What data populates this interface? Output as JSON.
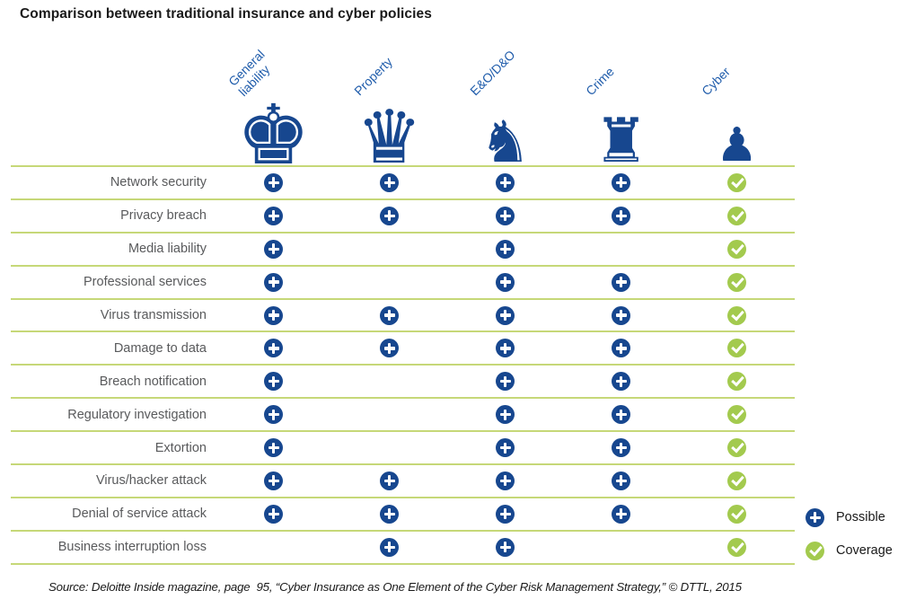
{
  "title": "Comparison between traditional insurance and cyber policies",
  "colors": {
    "navy": "#17478f",
    "header_blue": "#1f5cab",
    "check_green": "#a3ca4e",
    "line_green": "#c6d878",
    "row_label_gray": "#595a5c",
    "title_color": "#1a1a1a"
  },
  "columns": [
    {
      "id": "general-liability",
      "label": "General\nliability",
      "piece": "king-chess",
      "glyph": "♚"
    },
    {
      "id": "property",
      "label": "Property",
      "piece": "queen-chess",
      "glyph": "♛"
    },
    {
      "id": "eo-do",
      "label": "E&O/D&O",
      "piece": "knight-chess",
      "glyph": "♞"
    },
    {
      "id": "crime",
      "label": "Crime",
      "piece": "rook-chess",
      "glyph": "♜"
    },
    {
      "id": "cyber",
      "label": "Cyber",
      "piece": "pawn-chess",
      "glyph": "♟"
    }
  ],
  "rows": [
    {
      "label": "Network security",
      "cells": [
        "plus",
        "plus",
        "plus",
        "plus",
        "check"
      ]
    },
    {
      "label": "Privacy breach",
      "cells": [
        "plus",
        "plus",
        "plus",
        "plus",
        "check"
      ]
    },
    {
      "label": "Media liability",
      "cells": [
        "plus",
        "",
        "plus",
        "",
        "check"
      ]
    },
    {
      "label": "Professional services",
      "cells": [
        "plus",
        "",
        "plus",
        "plus",
        "check"
      ]
    },
    {
      "label": "Virus transmission",
      "cells": [
        "plus",
        "plus",
        "plus",
        "plus",
        "check"
      ]
    },
    {
      "label": "Damage to data",
      "cells": [
        "plus",
        "plus",
        "plus",
        "plus",
        "check"
      ]
    },
    {
      "label": "Breach notification",
      "cells": [
        "plus",
        "",
        "plus",
        "plus",
        "check"
      ]
    },
    {
      "label": "Regulatory investigation",
      "cells": [
        "plus",
        "",
        "plus",
        "plus",
        "check"
      ]
    },
    {
      "label": "Extortion",
      "cells": [
        "plus",
        "",
        "plus",
        "plus",
        "check"
      ]
    },
    {
      "label": "Virus/hacker attack",
      "cells": [
        "plus",
        "plus",
        "plus",
        "plus",
        "check"
      ]
    },
    {
      "label": "Denial of service attack",
      "cells": [
        "plus",
        "plus",
        "plus",
        "plus",
        "check"
      ]
    },
    {
      "label": "Business interruption loss",
      "cells": [
        "",
        "plus",
        "plus",
        "",
        "check"
      ]
    }
  ],
  "legend": [
    {
      "icon": "plus",
      "label": "Possible"
    },
    {
      "icon": "check",
      "label": "Coverage"
    }
  ],
  "source": "Source: Deloitte Inside magazine, page  95, “Cyber Insurance as One Element of the Cyber Risk Management Strategy,” © DTTL, 2015",
  "chart_data": {
    "type": "table",
    "title": "Comparison between traditional insurance and cyber policies",
    "columns": [
      "General liability",
      "Property",
      "E&O/D&O",
      "Crime",
      "Cyber"
    ],
    "column_icons": [
      "king chess piece",
      "queen chess piece",
      "knight chess piece",
      "rook chess piece",
      "pawn chess piece"
    ],
    "row_labels": [
      "Network security",
      "Privacy breach",
      "Media liability",
      "Professional services",
      "Virus transmission",
      "Damage to data",
      "Breach notification",
      "Regulatory investigation",
      "Extortion",
      "Virus/hacker attack",
      "Denial of service attack",
      "Business interruption loss"
    ],
    "values": [
      [
        "Possible",
        "Possible",
        "Possible",
        "Possible",
        "Coverage"
      ],
      [
        "Possible",
        "Possible",
        "Possible",
        "Possible",
        "Coverage"
      ],
      [
        "Possible",
        null,
        "Possible",
        null,
        "Coverage"
      ],
      [
        "Possible",
        null,
        "Possible",
        "Possible",
        "Coverage"
      ],
      [
        "Possible",
        "Possible",
        "Possible",
        "Possible",
        "Coverage"
      ],
      [
        "Possible",
        "Possible",
        "Possible",
        "Possible",
        "Coverage"
      ],
      [
        "Possible",
        null,
        "Possible",
        "Possible",
        "Coverage"
      ],
      [
        "Possible",
        null,
        "Possible",
        "Possible",
        "Coverage"
      ],
      [
        "Possible",
        null,
        "Possible",
        "Possible",
        "Coverage"
      ],
      [
        "Possible",
        "Possible",
        "Possible",
        "Possible",
        "Coverage"
      ],
      [
        "Possible",
        "Possible",
        "Possible",
        "Possible",
        "Coverage"
      ],
      [
        null,
        "Possible",
        "Possible",
        null,
        "Coverage"
      ]
    ],
    "legend": {
      "plus": "Possible",
      "check": "Coverage"
    },
    "legend_position": "bottom-right"
  }
}
